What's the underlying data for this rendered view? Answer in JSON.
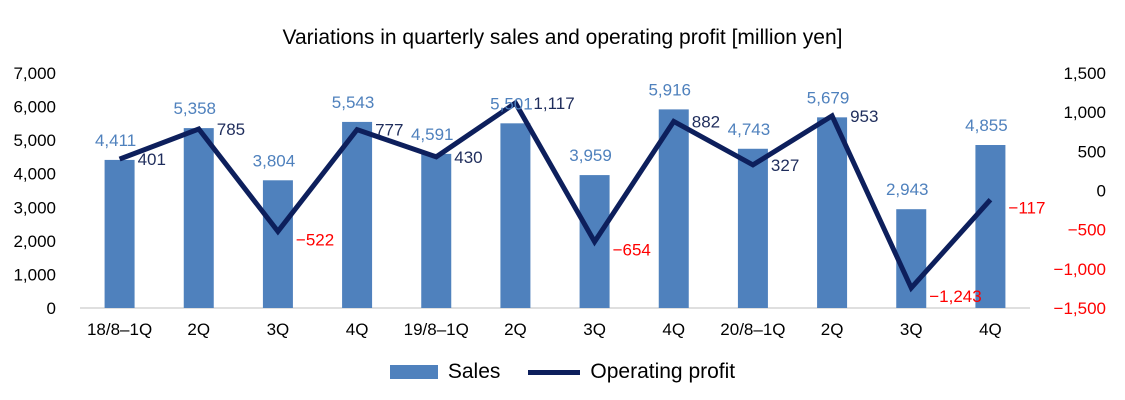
{
  "chart_data": {
    "type": "bar+line",
    "title": "Variations in quarterly sales and operating profit [million yen]",
    "categories": [
      "18/8–1Q",
      "2Q",
      "3Q",
      "4Q",
      "19/8–1Q",
      "2Q",
      "3Q",
      "4Q",
      "20/8–1Q",
      "2Q",
      "3Q",
      "4Q"
    ],
    "series": [
      {
        "name": "Sales",
        "type": "bar",
        "axis": "left",
        "color": "#4f81bd",
        "label_color": "#4f81bd",
        "values": [
          4411,
          5358,
          3804,
          5543,
          4591,
          5501,
          3959,
          5916,
          4743,
          5679,
          2943,
          4855
        ],
        "labels": [
          "4,411",
          "5,358",
          "3,804",
          "5,543",
          "4,591",
          "5,501",
          "3,959",
          "5,916",
          "4,743",
          "5,679",
          "2,943",
          "4,855"
        ]
      },
      {
        "name": "Operating profit",
        "type": "line",
        "axis": "right",
        "color": "#0d1f5c",
        "label_color": "#1f2d5c",
        "negative_label_color": "#ff0000",
        "values": [
          401,
          785,
          -522,
          777,
          430,
          1117,
          -654,
          882,
          327,
          953,
          -1243,
          -117
        ],
        "labels": [
          "401",
          "785",
          "−522",
          "777",
          "430",
          "1,117",
          "−654",
          "882",
          "327",
          "953",
          "−1,243",
          "−117"
        ]
      }
    ],
    "y_left": {
      "range": [
        0,
        7000
      ],
      "ticks": [
        0,
        1000,
        2000,
        3000,
        4000,
        5000,
        6000,
        7000
      ],
      "tick_labels": [
        "0",
        "1,000",
        "2,000",
        "3,000",
        "4,000",
        "5,000",
        "6,000",
        "7,000"
      ]
    },
    "y_right": {
      "range": [
        -1500,
        1500
      ],
      "ticks": [
        -1500,
        -1000,
        -500,
        0,
        500,
        1000,
        1500
      ],
      "tick_labels": [
        "−1,500",
        "−1,000",
        "−500",
        "0",
        "500",
        "1,000",
        "1,500"
      ],
      "negative_tick_color": "#ff0000"
    },
    "grid": false,
    "legend": "bottom-center"
  },
  "legend": {
    "sales_label": "Sales",
    "profit_label": "Operating profit"
  }
}
